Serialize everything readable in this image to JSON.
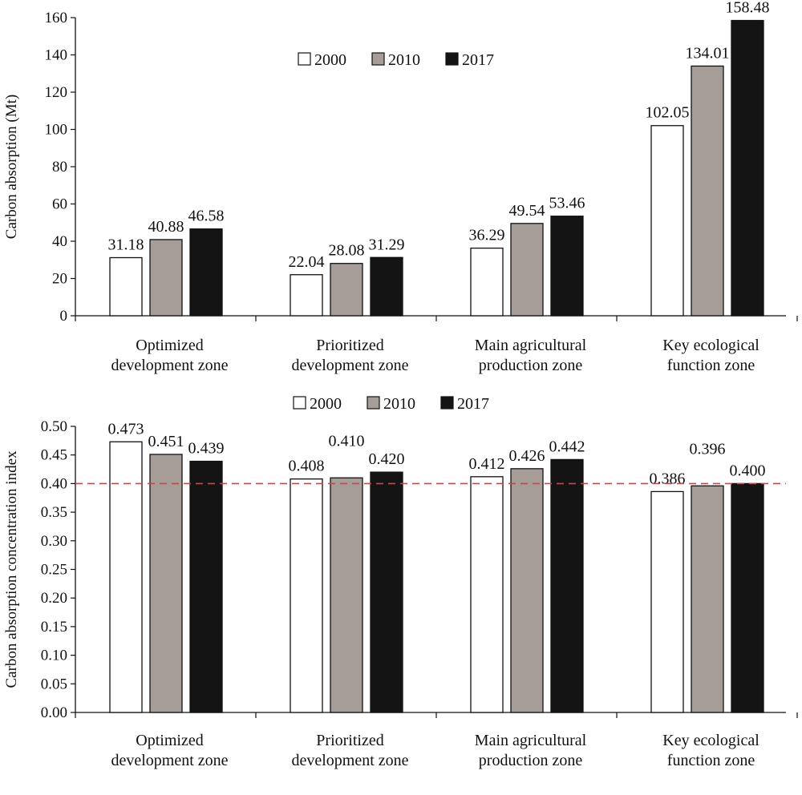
{
  "colors": {
    "2000": "#ffffff",
    "2010": "#a69c98",
    "2017": "#141414",
    "reference_line": "#e33b3b"
  },
  "chart_data": [
    {
      "type": "bar",
      "title": "",
      "xlabel": "",
      "ylabel": "Carbon absorption (Mt)",
      "ylim": [
        0,
        160
      ],
      "yticks": [
        "0",
        "20",
        "40",
        "60",
        "80",
        "100",
        "120",
        "140",
        "160"
      ],
      "categories": [
        [
          "Optimized",
          "development zone"
        ],
        [
          "Prioritized",
          "development zone"
        ],
        [
          "Main agricultural",
          "production zone"
        ],
        [
          "Key ecological",
          "function zone"
        ]
      ],
      "series": [
        {
          "name": "2000",
          "values": [
            31.18,
            22.04,
            36.29,
            102.05
          ],
          "labels": [
            "31.18",
            "22.04",
            "36.29",
            "102.05"
          ]
        },
        {
          "name": "2010",
          "values": [
            40.88,
            28.08,
            49.54,
            134.01
          ],
          "labels": [
            "40.88",
            "28.08",
            "49.54",
            "134.01"
          ]
        },
        {
          "name": "2017",
          "values": [
            46.58,
            31.29,
            53.46,
            158.48
          ],
          "labels": [
            "46.58",
            "31.29",
            "53.46",
            "158.48"
          ]
        }
      ],
      "legend_position": "top-center",
      "grid": false
    },
    {
      "type": "bar",
      "title": "",
      "xlabel": "",
      "ylabel": "Carbon absorption concentration index",
      "ylim": [
        0,
        0.5
      ],
      "yticks": [
        "0.00",
        "0.05",
        "0.10",
        "0.15",
        "0.20",
        "0.25",
        "0.30",
        "0.35",
        "0.40",
        "0.45",
        "0.50"
      ],
      "categories": [
        [
          "Optimized",
          "development zone"
        ],
        [
          "Prioritized",
          "development zone"
        ],
        [
          "Main agricultural",
          "production zone"
        ],
        [
          "Key ecological",
          "function zone"
        ]
      ],
      "series": [
        {
          "name": "2000",
          "values": [
            0.473,
            0.408,
            0.412,
            0.386
          ],
          "labels": [
            "0.473",
            "0.408",
            "0.412",
            "0.386"
          ]
        },
        {
          "name": "2010",
          "values": [
            0.451,
            0.41,
            0.426,
            0.396
          ],
          "labels": [
            "0.451",
            "0.410",
            "0.426",
            "0.396"
          ]
        },
        {
          "name": "2017",
          "values": [
            0.439,
            0.42,
            0.442,
            0.4
          ],
          "labels": [
            "0.439",
            "0.420",
            "0.442",
            "0.400"
          ]
        }
      ],
      "reference_line": {
        "y": 0.4,
        "style": "dashed"
      },
      "legend_position": "top-center",
      "grid": false
    }
  ]
}
